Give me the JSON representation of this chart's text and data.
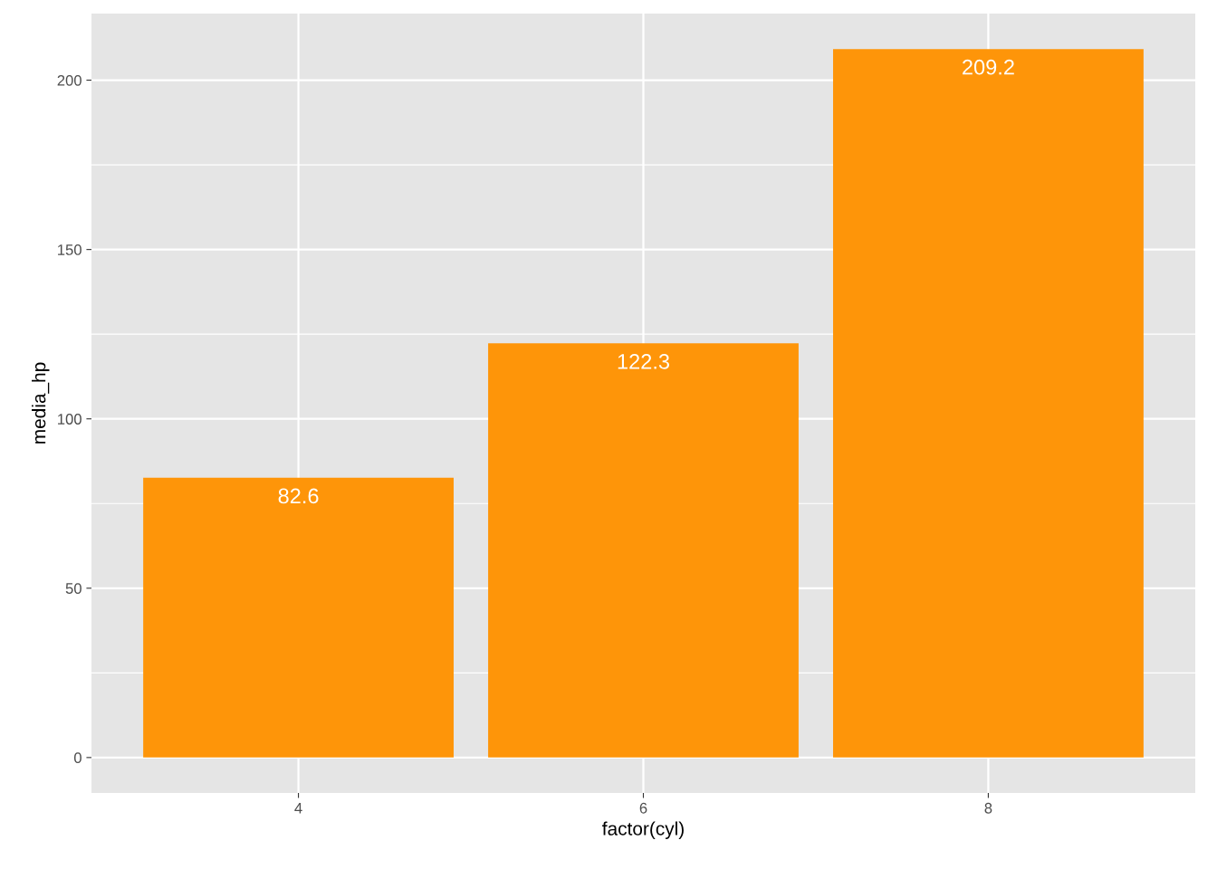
{
  "chart_data": {
    "type": "bar",
    "xlabel": "factor(cyl)",
    "ylabel": "media_hp",
    "categories": [
      "4",
      "6",
      "8"
    ],
    "values": [
      82.6,
      122.3,
      209.2
    ],
    "color": "#fe9509",
    "ylim": [
      -10.46,
      219.66
    ],
    "yticks": [
      0,
      50,
      100,
      150,
      200
    ],
    "grid": true,
    "data_labels": true
  }
}
